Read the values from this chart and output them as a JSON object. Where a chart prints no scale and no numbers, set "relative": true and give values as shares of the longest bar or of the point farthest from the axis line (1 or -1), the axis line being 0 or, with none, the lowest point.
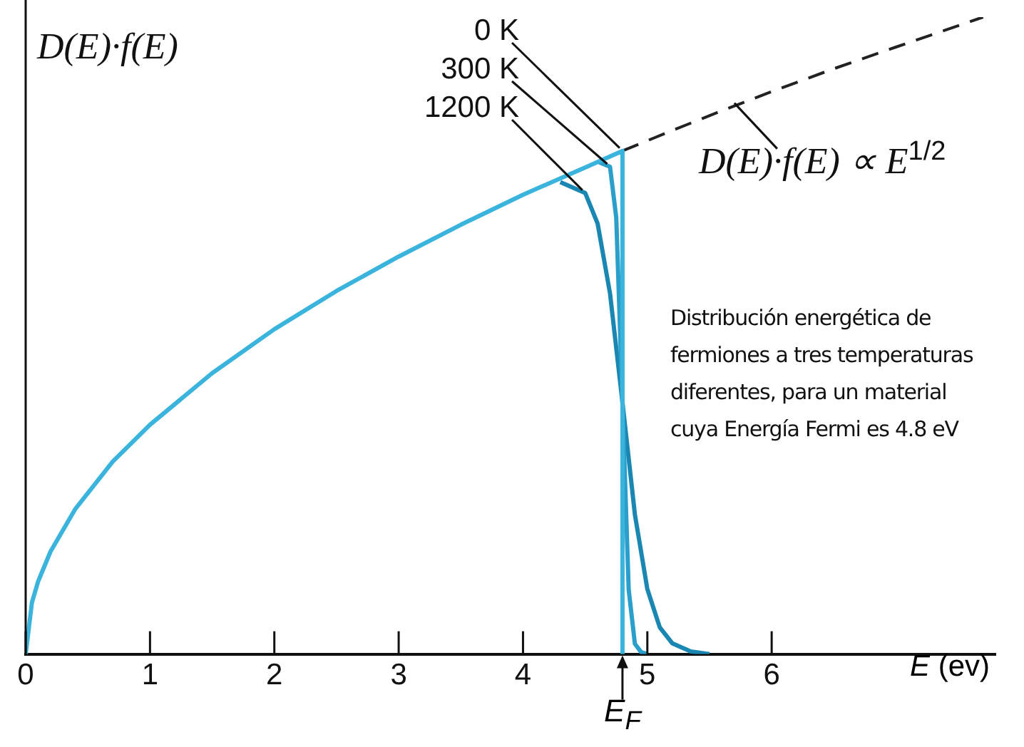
{
  "chart_data": {
    "type": "line",
    "relative": true,
    "ylabel": "D(E)·f(E)",
    "xlabel": "E (ev)",
    "xlim": [
      0,
      7.8
    ],
    "xticks": [
      0,
      1,
      2,
      3,
      4,
      5,
      6
    ],
    "grid": false,
    "legend": false,
    "marker": "none",
    "series": [
      {
        "name": "0 K",
        "color": "#3ab4dc",
        "line_style": "solid",
        "x": [
          0,
          0.05,
          0.1,
          0.2,
          0.4,
          0.7,
          1,
          1.5,
          2,
          2.5,
          3,
          3.5,
          4,
          4.5,
          4.8,
          4.8
        ],
        "values": [
          0,
          0.0806,
          0.114,
          0.161,
          0.228,
          0.302,
          0.36,
          0.441,
          0.51,
          0.57,
          0.624,
          0.674,
          0.721,
          0.764,
          0.79,
          0
        ]
      },
      {
        "name": "300 K",
        "color": "#2a9fcb",
        "line_style": "solid",
        "x": [
          4.6,
          4.7,
          4.75,
          4.8,
          4.85,
          4.9,
          4.95,
          5.0
        ],
        "values": [
          0.773,
          0.765,
          0.685,
          0.395,
          0.101,
          0.016,
          0.003,
          0
        ]
      },
      {
        "name": "1200 K",
        "color": "#1a86b2",
        "line_style": "solid",
        "x": [
          4.3,
          4.5,
          4.6,
          4.7,
          4.8,
          4.9,
          5.0,
          5.1,
          5.2,
          5.35,
          5.5
        ],
        "values": [
          0.741,
          0.724,
          0.676,
          0.566,
          0.395,
          0.219,
          0.102,
          0.042,
          0.017,
          0.004,
          0
        ]
      },
      {
        "name": "D(E)·f(E) ∝ E$^{1/2}$",
        "color": "#222222",
        "line_style": "dashed",
        "x": [
          4.8,
          5.2,
          5.6,
          6,
          6.5,
          7,
          7.7
        ],
        "values": [
          0.79,
          0.822,
          0.853,
          0.883,
          0.919,
          0.953,
          1
        ]
      }
    ],
    "annotations": [
      "E$_{F}$",
      "Distribución energética de\nfermiones a tres temperaturas\ndiferentes, para un material\ncuya Energía Fermi es 4.8 eV"
    ]
  }
}
